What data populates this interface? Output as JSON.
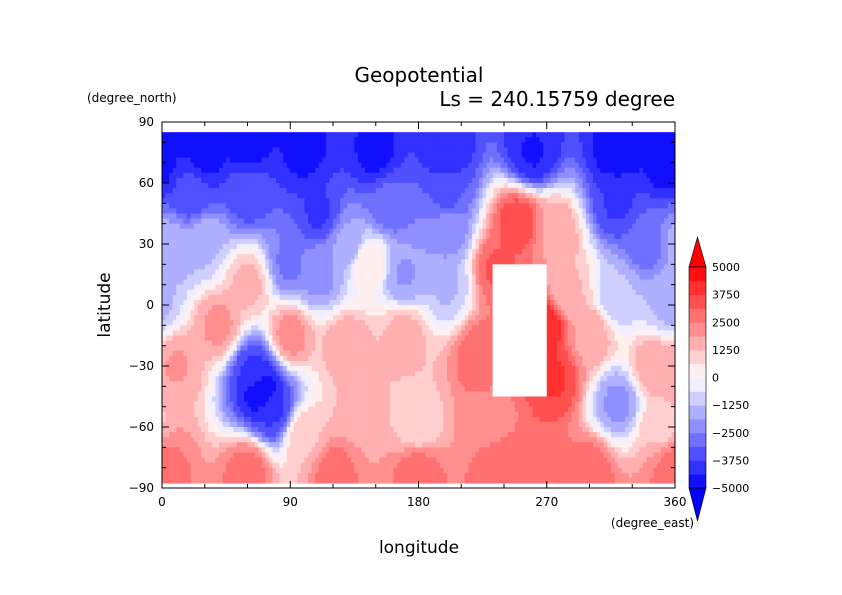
{
  "chart_data": {
    "type": "heatmap",
    "title": "Geopotential",
    "subtitle": "Ls = 240.15759 degree",
    "xlabel": "longitude",
    "ylabel": "latitude",
    "x_units": "(degree_east)",
    "y_units": "(degree_north)",
    "xlim": [
      0,
      360
    ],
    "ylim": [
      -90,
      90
    ],
    "x_ticks": [
      0,
      90,
      180,
      270,
      360
    ],
    "x_tick_labels": [
      "0",
      "90",
      "180",
      "270",
      "360"
    ],
    "y_ticks": [
      -90,
      -60,
      -30,
      0,
      30,
      60,
      90
    ],
    "y_tick_labels": [
      "−90",
      "−60",
      "−30",
      "0",
      "30",
      "60",
      "90"
    ],
    "color_scale": {
      "min": -5000,
      "max": 5000,
      "ticks": [
        -5000,
        -3750,
        -2500,
        -1250,
        0,
        1250,
        2500,
        3750,
        5000
      ],
      "tick_labels": [
        "−5000",
        "−3750",
        "−2500",
        "−1250",
        "0",
        "1250",
        "2500",
        "3750",
        "5000"
      ],
      "low_color": "#0000ff",
      "mid_color": "#ffffff",
      "high_color": "#ff0000"
    },
    "data_lat_extent": [
      -85,
      85
    ],
    "missing_regions": [
      {
        "lon": [
          232,
          270
        ],
        "lat": [
          -45,
          20
        ]
      }
    ],
    "features": [
      {
        "lon": 0,
        "lat": 80,
        "value": -4500
      },
      {
        "lon": 30,
        "lat": 75,
        "value": -4600
      },
      {
        "lon": 60,
        "lat": 80,
        "value": -4700
      },
      {
        "lon": 100,
        "lat": 75,
        "value": -4500
      },
      {
        "lon": 150,
        "lat": 75,
        "value": -4500
      },
      {
        "lon": 200,
        "lat": 75,
        "value": -4300
      },
      {
        "lon": 260,
        "lat": 75,
        "value": -4400
      },
      {
        "lon": 320,
        "lat": 75,
        "value": -4700
      },
      {
        "lon": 355,
        "lat": 70,
        "value": -4700
      },
      {
        "lon": 20,
        "lat": 55,
        "value": -3600
      },
      {
        "lon": 60,
        "lat": 55,
        "value": -3400
      },
      {
        "lon": 110,
        "lat": 45,
        "value": -3800
      },
      {
        "lon": 160,
        "lat": 50,
        "value": -3000
      },
      {
        "lon": 200,
        "lat": 55,
        "value": -3200
      },
      {
        "lon": 200,
        "lat": 35,
        "value": -2200
      },
      {
        "lon": 320,
        "lat": 50,
        "value": -3800
      },
      {
        "lon": 340,
        "lat": 30,
        "value": -2800
      },
      {
        "lon": 5,
        "lat": 30,
        "value": -1600
      },
      {
        "lon": 30,
        "lat": 30,
        "value": -1300
      },
      {
        "lon": 90,
        "lat": 20,
        "value": -2600
      },
      {
        "lon": 110,
        "lat": 15,
        "value": -2000
      },
      {
        "lon": 130,
        "lat": 30,
        "value": -1800
      },
      {
        "lon": 170,
        "lat": 15,
        "value": -1900
      },
      {
        "lon": 200,
        "lat": 10,
        "value": -1300
      },
      {
        "lon": 320,
        "lat": 5,
        "value": -1200
      },
      {
        "lon": 355,
        "lat": 0,
        "value": -1400
      },
      {
        "lon": 145,
        "lat": 20,
        "value": 500
      },
      {
        "lon": 250,
        "lat": 40,
        "value": 3500
      },
      {
        "lon": 235,
        "lat": 18,
        "value": 3200
      },
      {
        "lon": 275,
        "lat": 35,
        "value": 1800
      },
      {
        "lon": 285,
        "lat": 5,
        "value": 1300
      },
      {
        "lon": 270,
        "lat": -10,
        "value": 4200
      },
      {
        "lon": 275,
        "lat": -35,
        "value": 3800
      },
      {
        "lon": 225,
        "lat": -25,
        "value": 3000
      },
      {
        "lon": 230,
        "lat": -55,
        "value": 2300
      },
      {
        "lon": 300,
        "lat": -15,
        "value": 1700
      },
      {
        "lon": 60,
        "lat": 10,
        "value": 1400
      },
      {
        "lon": 40,
        "lat": -10,
        "value": 2000
      },
      {
        "lon": 90,
        "lat": -15,
        "value": 2100
      },
      {
        "lon": 130,
        "lat": -20,
        "value": 1700
      },
      {
        "lon": 170,
        "lat": -15,
        "value": 1500
      },
      {
        "lon": 10,
        "lat": -30,
        "value": 1900
      },
      {
        "lon": 140,
        "lat": -50,
        "value": 1400
      },
      {
        "lon": 180,
        "lat": -60,
        "value": 900
      },
      {
        "lon": 100,
        "lat": -65,
        "value": 1200
      },
      {
        "lon": 345,
        "lat": -30,
        "value": 1700
      },
      {
        "lon": 350,
        "lat": -60,
        "value": 1100
      },
      {
        "lon": 70,
        "lat": -42,
        "value": -5000
      },
      {
        "lon": 65,
        "lat": -32,
        "value": -3800
      },
      {
        "lon": 78,
        "lat": -52,
        "value": -3800
      },
      {
        "lon": 320,
        "lat": -48,
        "value": -2000
      },
      {
        "lon": 0,
        "lat": -80,
        "value": 2700
      },
      {
        "lon": 60,
        "lat": -82,
        "value": 2800
      },
      {
        "lon": 120,
        "lat": -82,
        "value": 2700
      },
      {
        "lon": 180,
        "lat": -82,
        "value": 2800
      },
      {
        "lon": 240,
        "lat": -82,
        "value": 2900
      },
      {
        "lon": 300,
        "lat": -82,
        "value": 2800
      },
      {
        "lon": 360,
        "lat": -82,
        "value": 2700
      }
    ]
  }
}
